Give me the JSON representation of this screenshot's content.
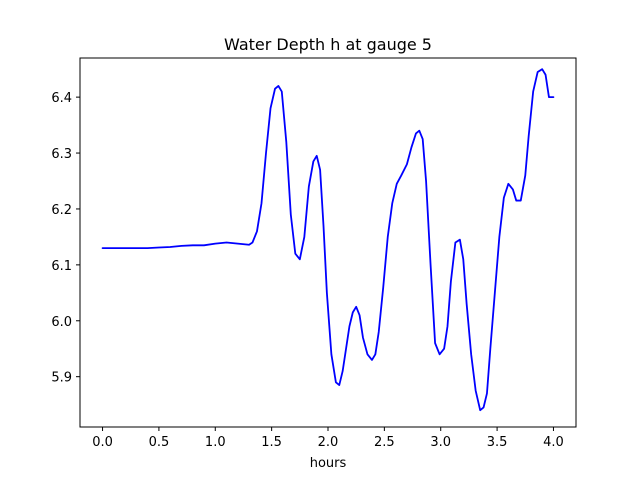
{
  "chart_data": {
    "type": "line",
    "title": "Water Depth h at gauge 5",
    "xlabel": "hours",
    "ylabel": "",
    "xlim": [
      -0.2,
      4.2
    ],
    "ylim": [
      5.81,
      6.47
    ],
    "xticks": [
      0.0,
      0.5,
      1.0,
      1.5,
      2.0,
      2.5,
      3.0,
      3.5,
      4.0
    ],
    "xtick_labels": [
      "0.0",
      "0.5",
      "1.0",
      "1.5",
      "2.0",
      "2.5",
      "3.0",
      "3.5",
      "4.0"
    ],
    "yticks": [
      5.9,
      6.0,
      6.1,
      6.2,
      6.3,
      6.4
    ],
    "ytick_labels": [
      "5.9",
      "6.0",
      "6.1",
      "6.2",
      "6.3",
      "6.4"
    ],
    "grid": false,
    "series": [
      {
        "color": "#0000ff",
        "x": [
          0.0,
          0.2,
          0.4,
          0.5,
          0.6,
          0.7,
          0.8,
          0.9,
          1.0,
          1.1,
          1.2,
          1.3,
          1.33,
          1.37,
          1.41,
          1.45,
          1.49,
          1.53,
          1.56,
          1.59,
          1.63,
          1.67,
          1.71,
          1.75,
          1.79,
          1.83,
          1.87,
          1.9,
          1.93,
          1.96,
          1.99,
          2.03,
          2.07,
          2.1,
          2.13,
          2.16,
          2.19,
          2.22,
          2.25,
          2.28,
          2.31,
          2.35,
          2.39,
          2.42,
          2.45,
          2.49,
          2.53,
          2.57,
          2.61,
          2.65,
          2.7,
          2.74,
          2.78,
          2.81,
          2.84,
          2.87,
          2.91,
          2.95,
          2.99,
          3.03,
          3.06,
          3.09,
          3.13,
          3.17,
          3.2,
          3.23,
          3.27,
          3.31,
          3.35,
          3.38,
          3.41,
          3.44,
          3.48,
          3.52,
          3.56,
          3.6,
          3.64,
          3.67,
          3.71,
          3.75,
          3.78,
          3.82,
          3.86,
          3.9,
          3.93,
          3.96,
          3.99,
          4.0
        ],
        "y": [
          6.13,
          6.13,
          6.13,
          6.131,
          6.132,
          6.134,
          6.135,
          6.135,
          6.138,
          6.14,
          6.138,
          6.136,
          6.14,
          6.16,
          6.21,
          6.3,
          6.38,
          6.415,
          6.42,
          6.41,
          6.32,
          6.19,
          6.12,
          6.11,
          6.15,
          6.24,
          6.285,
          6.295,
          6.27,
          6.17,
          6.05,
          5.94,
          5.89,
          5.885,
          5.91,
          5.95,
          5.99,
          6.015,
          6.025,
          6.01,
          5.97,
          5.94,
          5.93,
          5.94,
          5.98,
          6.06,
          6.15,
          6.21,
          6.245,
          6.26,
          6.28,
          6.31,
          6.335,
          6.34,
          6.325,
          6.25,
          6.1,
          5.96,
          5.94,
          5.95,
          5.99,
          6.07,
          6.14,
          6.145,
          6.11,
          6.03,
          5.94,
          5.875,
          5.84,
          5.845,
          5.87,
          5.95,
          6.05,
          6.15,
          6.22,
          6.245,
          6.235,
          6.215,
          6.215,
          6.26,
          6.33,
          6.41,
          6.445,
          6.45,
          6.44,
          6.4,
          6.4,
          6.4
        ]
      }
    ]
  }
}
